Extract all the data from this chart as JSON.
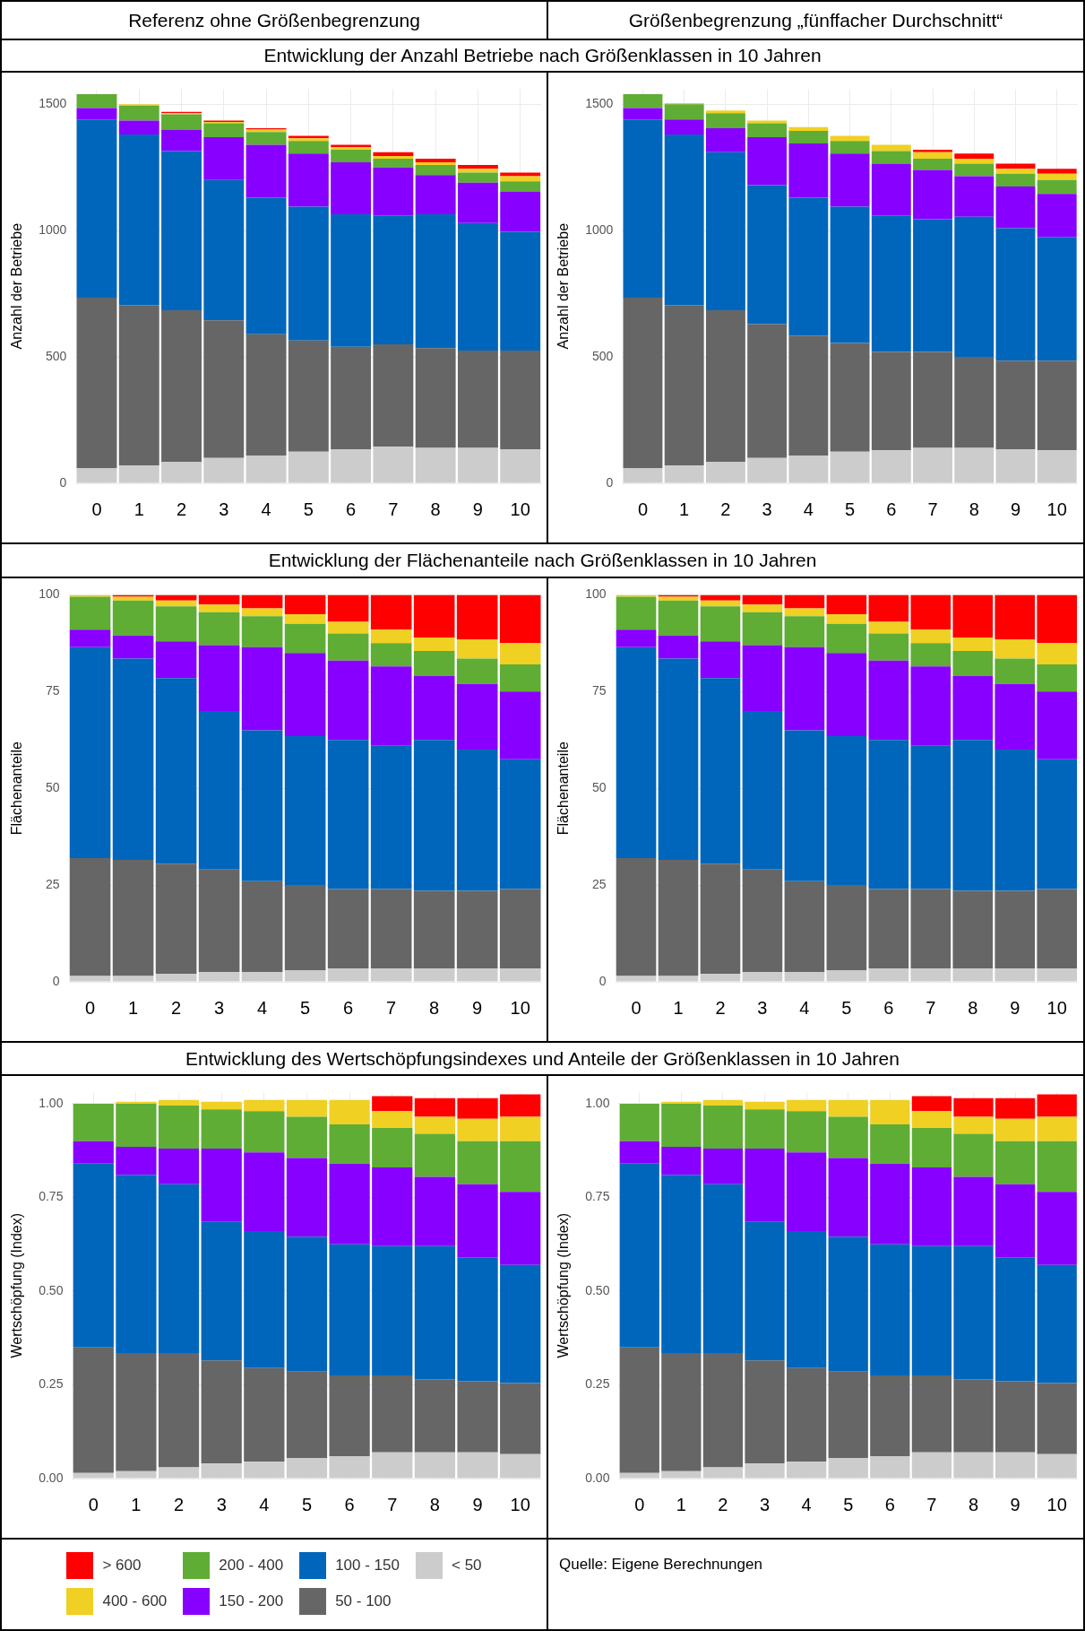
{
  "chart_data": [
    {
      "type": "bar",
      "title": "Entwicklung der Anzahl Betriebe nach Größenklassen in 10 Jahren",
      "subtitle": "Referenz ohne Größenbegrenzung",
      "ylabel": "Anzahl der Betriebe",
      "categories": [
        "0",
        "1",
        "2",
        "3",
        "4",
        "5",
        "6",
        "7",
        "8",
        "9",
        "10"
      ],
      "stacked": true,
      "ylim": [
        0,
        1560
      ],
      "yticks": [
        0,
        500,
        1000,
        1500
      ],
      "grid": true,
      "legend": "bottom",
      "series": [
        {
          "name": "< 50",
          "color": "#cccccc",
          "values": [
            60,
            70,
            85,
            100,
            110,
            125,
            135,
            145,
            140,
            140,
            135
          ]
        },
        {
          "name": "50 - 100",
          "color": "#666666",
          "values": [
            675,
            635,
            600,
            545,
            480,
            440,
            405,
            405,
            395,
            385,
            390
          ]
        },
        {
          "name": "100 - 150",
          "color": "#0066bb",
          "values": [
            705,
            675,
            630,
            555,
            540,
            530,
            525,
            510,
            530,
            505,
            470
          ]
        },
        {
          "name": "150 - 200",
          "color": "#8800ff",
          "values": [
            45,
            55,
            85,
            170,
            210,
            210,
            205,
            190,
            155,
            160,
            160
          ]
        },
        {
          "name": "200 - 400",
          "color": "#5fad35",
          "values": [
            55,
            60,
            60,
            55,
            50,
            50,
            50,
            35,
            40,
            40,
            40
          ]
        },
        {
          "name": "400 - 600",
          "color": "#f0d023",
          "values": [
            0,
            5,
            5,
            5,
            10,
            10,
            10,
            10,
            10,
            15,
            20
          ]
        },
        {
          "name": "> 600",
          "color": "#ff0000",
          "values": [
            0,
            0,
            5,
            5,
            5,
            10,
            10,
            15,
            15,
            15,
            15
          ]
        }
      ]
    },
    {
      "type": "bar",
      "subtitle": "Größenbegrenzung „fünffacher Durchschnitt“",
      "ylabel": "Anzahl der Betriebe",
      "categories": [
        "0",
        "1",
        "2",
        "3",
        "4",
        "5",
        "6",
        "7",
        "8",
        "9",
        "10"
      ],
      "stacked": true,
      "ylim": [
        0,
        1560
      ],
      "yticks": [
        0,
        500,
        1000,
        1500
      ],
      "grid": true,
      "series": [
        {
          "color": "#cccccc",
          "values": [
            60,
            70,
            85,
            100,
            110,
            125,
            130,
            140,
            140,
            135,
            130
          ]
        },
        {
          "color": "#666666",
          "values": [
            675,
            635,
            600,
            530,
            475,
            430,
            390,
            380,
            360,
            350,
            355
          ]
        },
        {
          "color": "#0066bb",
          "values": [
            705,
            675,
            625,
            550,
            545,
            540,
            540,
            525,
            555,
            525,
            490
          ]
        },
        {
          "color": "#8800ff",
          "values": [
            45,
            60,
            95,
            190,
            215,
            210,
            205,
            195,
            160,
            165,
            170
          ]
        },
        {
          "color": "#5fad35",
          "values": [
            55,
            60,
            60,
            55,
            50,
            50,
            50,
            45,
            50,
            50,
            55
          ]
        },
        {
          "color": "#f0d023",
          "values": [
            0,
            5,
            10,
            10,
            15,
            20,
            25,
            25,
            20,
            20,
            25
          ]
        },
        {
          "color": "#ff0000",
          "values": [
            0,
            0,
            0,
            0,
            0,
            0,
            0,
            10,
            20,
            20,
            20
          ]
        }
      ]
    },
    {
      "type": "bar",
      "title": "Entwicklung der Flächenanteile nach Größenklassen in 10 Jahren",
      "ylabel": "Flächenanteile",
      "categories": [
        "0",
        "1",
        "2",
        "3",
        "4",
        "5",
        "6",
        "7",
        "8",
        "9",
        "10"
      ],
      "stacked": true,
      "ylim": [
        0,
        100
      ],
      "yticks": [
        0,
        25,
        50,
        75,
        100
      ],
      "grid": true,
      "series": [
        {
          "color": "#cccccc",
          "values": [
            1.5,
            1.5,
            2,
            2.5,
            2.5,
            3,
            3.5,
            3.5,
            3.5,
            3.5,
            3.5
          ]
        },
        {
          "color": "#666666",
          "values": [
            30.5,
            30,
            28.5,
            26.5,
            23.5,
            22,
            20.5,
            20.5,
            20,
            20,
            20.5
          ]
        },
        {
          "color": "#0066bb",
          "values": [
            54.5,
            52,
            48,
            41,
            39,
            38.5,
            38.5,
            37,
            39,
            36.5,
            33.5
          ]
        },
        {
          "color": "#8800ff",
          "values": [
            4.5,
            6,
            9.5,
            17,
            21.5,
            21.5,
            20.5,
            20.5,
            16.5,
            17,
            17.5
          ]
        },
        {
          "color": "#5fad35",
          "values": [
            8.5,
            9,
            9,
            8.5,
            8,
            7.5,
            7,
            6,
            6.5,
            6.5,
            7
          ]
        },
        {
          "color": "#f0d023",
          "values": [
            0.5,
            1,
            1.5,
            2,
            2,
            2.5,
            3,
            3.5,
            3.5,
            5,
            5.5
          ]
        },
        {
          "color": "#ff0000",
          "values": [
            0,
            0.5,
            1.5,
            2.5,
            3.5,
            5,
            7,
            9,
            11,
            11.5,
            12.5
          ]
        }
      ]
    },
    {
      "type": "bar",
      "ylabel": "Flächenanteile",
      "categories": [
        "0",
        "1",
        "2",
        "3",
        "4",
        "5",
        "6",
        "7",
        "8",
        "9",
        "10"
      ],
      "stacked": true,
      "ylim": [
        0,
        100
      ],
      "yticks": [
        0,
        25,
        50,
        75,
        100
      ],
      "grid": true,
      "series": [
        {
          "color": "#cccccc",
          "values": [
            1.5,
            1.5,
            2,
            2.5,
            2.5,
            3,
            3.5,
            3.5,
            3.5,
            3.5,
            3.5
          ]
        },
        {
          "color": "#666666",
          "values": [
            30.5,
            30,
            28.5,
            26.5,
            23.5,
            22,
            20.5,
            20.5,
            20,
            20,
            20.5
          ]
        },
        {
          "color": "#0066bb",
          "values": [
            54.5,
            52,
            48,
            41,
            39,
            38.5,
            38.5,
            37,
            39,
            36.5,
            33.5
          ]
        },
        {
          "color": "#8800ff",
          "values": [
            4.5,
            6,
            9.5,
            17,
            21.5,
            21.5,
            20.5,
            20.5,
            16.5,
            17,
            17.5
          ]
        },
        {
          "color": "#5fad35",
          "values": [
            8.5,
            9,
            9,
            8.5,
            8,
            7.5,
            7,
            6,
            6.5,
            6.5,
            7
          ]
        },
        {
          "color": "#f0d023",
          "values": [
            0.5,
            1,
            1.5,
            2,
            2,
            2.5,
            3,
            3.5,
            3.5,
            5,
            5.5
          ]
        },
        {
          "color": "#ff0000",
          "values": [
            0,
            0.5,
            1.5,
            2.5,
            3.5,
            5,
            7,
            9,
            11,
            11.5,
            12.5
          ]
        }
      ]
    },
    {
      "type": "bar",
      "title": "Entwicklung des Wertschöpfungsindexes und Anteile der Größenklassen in 10 Jahren",
      "ylabel": "Wertschöpfung (Index)",
      "categories": [
        "0",
        "1",
        "2",
        "3",
        "4",
        "5",
        "6",
        "7",
        "8",
        "9",
        "10"
      ],
      "stacked": true,
      "ylim": [
        0,
        1.03
      ],
      "yticks": [
        {
          "value": 0,
          "label": "0.00"
        },
        {
          "value": 0.25,
          "label": "0.25"
        },
        {
          "value": 0.5,
          "label": "0.50"
        },
        {
          "value": 0.75,
          "label": "0.75"
        },
        {
          "value": 1,
          "label": "1.00"
        }
      ],
      "grid": true,
      "series": [
        {
          "color": "#cccccc",
          "values": [
            0.015,
            0.02,
            0.03,
            0.04,
            0.045,
            0.055,
            0.06,
            0.07,
            0.07,
            0.07,
            0.065
          ]
        },
        {
          "color": "#666666",
          "values": [
            0.335,
            0.315,
            0.305,
            0.275,
            0.25,
            0.23,
            0.215,
            0.205,
            0.195,
            0.19,
            0.19
          ]
        },
        {
          "color": "#0066bb",
          "values": [
            0.49,
            0.475,
            0.45,
            0.37,
            0.365,
            0.36,
            0.35,
            0.345,
            0.355,
            0.33,
            0.315
          ]
        },
        {
          "color": "#8800ff",
          "values": [
            0.06,
            0.075,
            0.095,
            0.195,
            0.21,
            0.21,
            0.215,
            0.21,
            0.185,
            0.195,
            0.195
          ]
        },
        {
          "color": "#5fad35",
          "values": [
            0.1,
            0.115,
            0.115,
            0.105,
            0.11,
            0.11,
            0.105,
            0.105,
            0.115,
            0.115,
            0.135
          ]
        },
        {
          "color": "#f0d023",
          "values": [
            0,
            0.005,
            0.015,
            0.02,
            0.03,
            0.045,
            0.065,
            0.045,
            0.045,
            0.06,
            0.065
          ]
        },
        {
          "color": "#ff0000",
          "values": [
            0,
            0,
            0,
            0,
            0,
            0,
            0,
            0.04,
            0.05,
            0.055,
            0.06
          ]
        }
      ]
    },
    {
      "type": "bar",
      "ylabel": "Wertschöpfung (Index)",
      "categories": [
        "0",
        "1",
        "2",
        "3",
        "4",
        "5",
        "6",
        "7",
        "8",
        "9",
        "10"
      ],
      "stacked": true,
      "ylim": [
        0,
        1.03
      ],
      "yticks": [
        {
          "value": 0,
          "label": "0.00"
        },
        {
          "value": 0.25,
          "label": "0.25"
        },
        {
          "value": 0.5,
          "label": "0.50"
        },
        {
          "value": 0.75,
          "label": "0.75"
        },
        {
          "value": 1,
          "label": "1.00"
        }
      ],
      "grid": true,
      "annotations": [
        "Quelle: Eigene Berechnungen"
      ],
      "series": [
        {
          "color": "#cccccc",
          "values": [
            0.015,
            0.02,
            0.03,
            0.04,
            0.045,
            0.055,
            0.06,
            0.07,
            0.07,
            0.07,
            0.065
          ]
        },
        {
          "color": "#666666",
          "values": [
            0.335,
            0.315,
            0.305,
            0.275,
            0.25,
            0.23,
            0.215,
            0.205,
            0.195,
            0.19,
            0.19
          ]
        },
        {
          "color": "#0066bb",
          "values": [
            0.49,
            0.475,
            0.45,
            0.37,
            0.365,
            0.36,
            0.35,
            0.345,
            0.355,
            0.33,
            0.315
          ]
        },
        {
          "color": "#8800ff",
          "values": [
            0.06,
            0.075,
            0.095,
            0.195,
            0.21,
            0.21,
            0.215,
            0.21,
            0.185,
            0.195,
            0.195
          ]
        },
        {
          "color": "#5fad35",
          "values": [
            0.1,
            0.115,
            0.115,
            0.105,
            0.11,
            0.11,
            0.105,
            0.105,
            0.115,
            0.115,
            0.135
          ]
        },
        {
          "color": "#f0d023",
          "values": [
            0,
            0.005,
            0.015,
            0.02,
            0.03,
            0.045,
            0.065,
            0.045,
            0.045,
            0.06,
            0.065
          ]
        },
        {
          "color": "#ff0000",
          "values": [
            0,
            0,
            0,
            0,
            0,
            0,
            0,
            0.04,
            0.05,
            0.055,
            0.06
          ]
        }
      ]
    }
  ]
}
